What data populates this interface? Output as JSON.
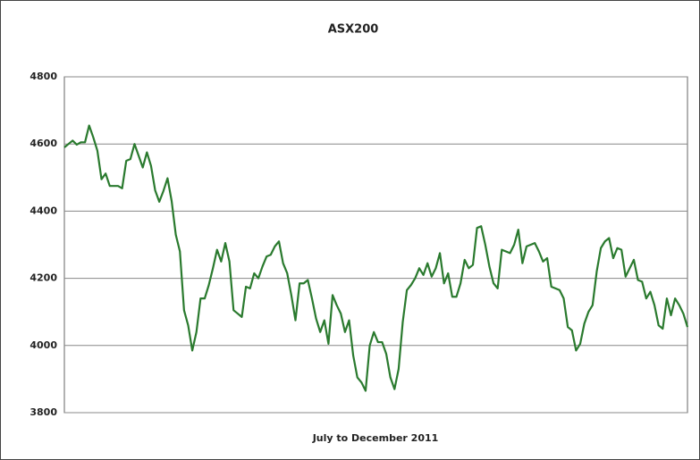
{
  "chart_data": {
    "type": "line",
    "title": "ASX200",
    "xlabel": "July to December 2011",
    "series": [
      {
        "name": "ASX200",
        "color": "#2a7a2e",
        "values": [
          4590,
          4600,
          4610,
          4598,
          4605,
          4605,
          4655,
          4620,
          4580,
          4495,
          4512,
          4475,
          4475,
          4475,
          4468,
          4550,
          4555,
          4600,
          4565,
          4530,
          4575,
          4535,
          4462,
          4428,
          4460,
          4498,
          4430,
          4330,
          4280,
          4105,
          4060,
          3985,
          4040,
          4140,
          4140,
          4180,
          4230,
          4285,
          4250,
          4305,
          4250,
          4105,
          4095,
          4085,
          4175,
          4170,
          4215,
          4200,
          4235,
          4265,
          4270,
          4295,
          4310,
          4245,
          4215,
          4150,
          4075,
          4185,
          4185,
          4195,
          4140,
          4080,
          4040,
          4075,
          4005,
          4150,
          4120,
          4095,
          4040,
          4075,
          3970,
          3905,
          3890,
          3865,
          4000,
          4040,
          4010,
          4010,
          3975,
          3905,
          3870,
          3930,
          4070,
          4165,
          4180,
          4200,
          4230,
          4210,
          4245,
          4205,
          4230,
          4275,
          4185,
          4215,
          4145,
          4145,
          4185,
          4255,
          4230,
          4240,
          4350,
          4355,
          4300,
          4235,
          4185,
          4170,
          4285,
          4280,
          4275,
          4300,
          4345,
          4245,
          4295,
          4300,
          4305,
          4280,
          4250,
          4260,
          4175,
          4170,
          4165,
          4140,
          4055,
          4045,
          3985,
          4005,
          4065,
          4100,
          4120,
          4220,
          4290,
          4310,
          4320,
          4260,
          4290,
          4285,
          4205,
          4230,
          4255,
          4195,
          4190,
          4140,
          4160,
          4120,
          4060,
          4050,
          4140,
          4090,
          4140,
          4120,
          4095,
          4055
        ]
      }
    ],
    "ylim": [
      3800,
      4800
    ],
    "yticks": [
      3800,
      4000,
      4200,
      4400,
      4600,
      4800
    ],
    "grid": true
  }
}
